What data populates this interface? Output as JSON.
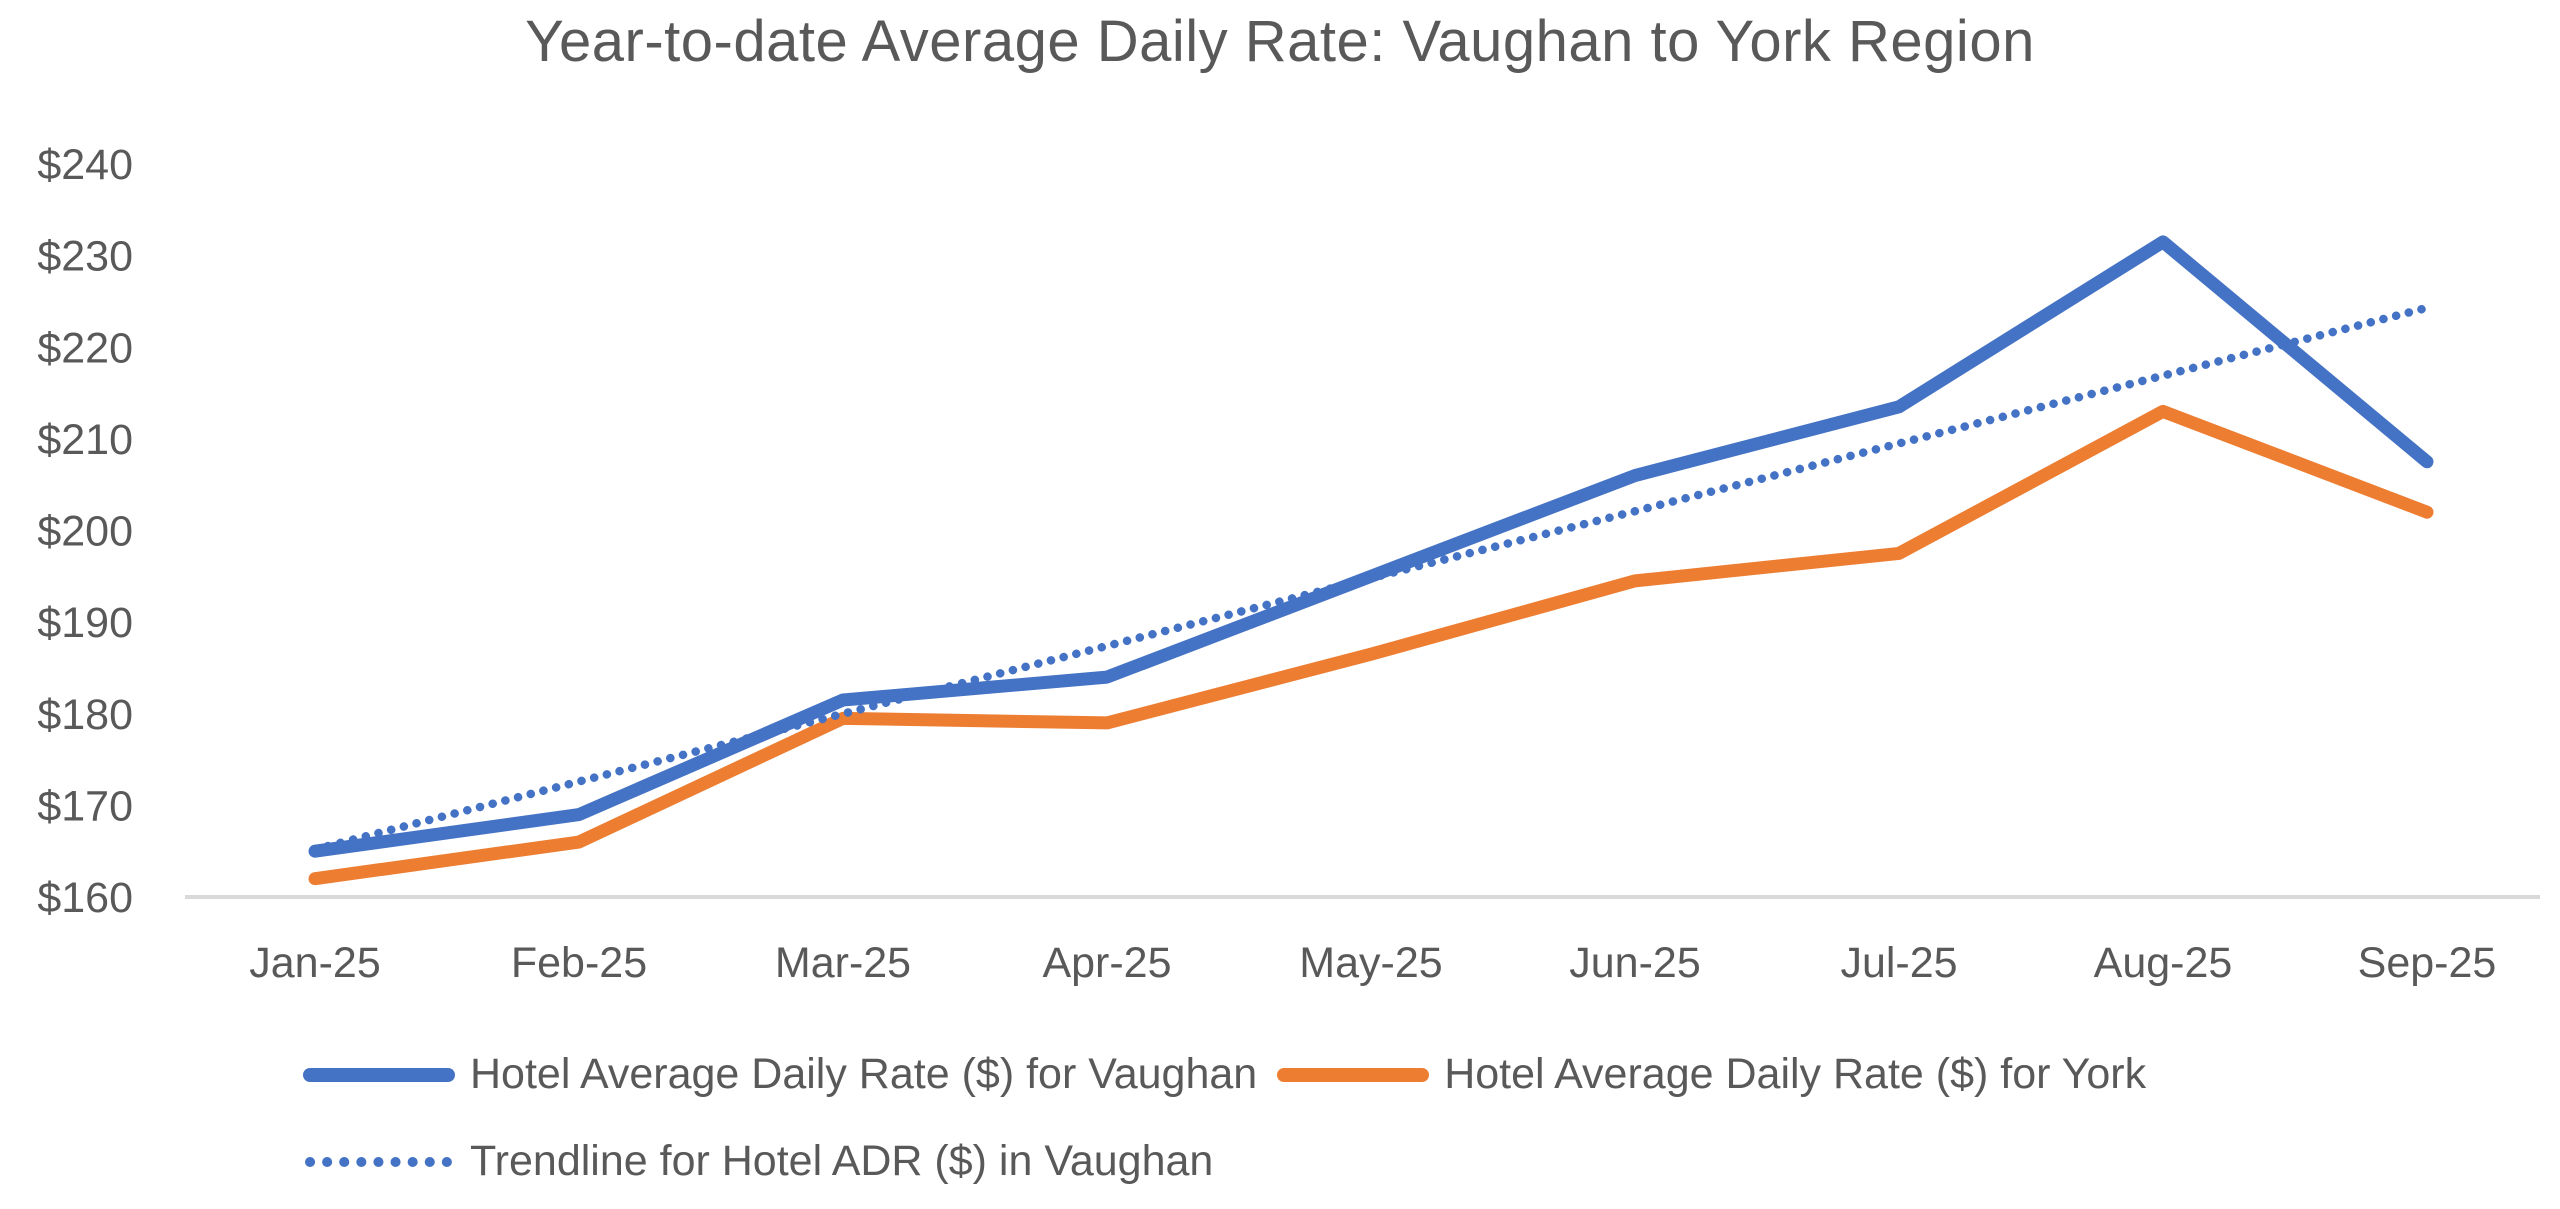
{
  "page": {
    "background": "#ffffff"
  },
  "chart_data": {
    "type": "line",
    "title": "Year-to-date Average Daily Rate: Vaughan to York Region",
    "categories": [
      "Jan-25",
      "Feb-25",
      "Mar-25",
      "Apr-25",
      "May-25",
      "Jun-25",
      "Jul-25",
      "Aug-25",
      "Sep-25"
    ],
    "series": [
      {
        "id": "vaughan",
        "name": "Hotel Average Daily Rate ($) for Vaughan",
        "color": "#4472C4",
        "style": "solid",
        "values": [
          165,
          169,
          181.5,
          184,
          195,
          206,
          213.5,
          231.5,
          207.5
        ]
      },
      {
        "id": "york",
        "name": "Hotel Average Daily Rate ($) for York",
        "color": "#ED7D31",
        "style": "solid",
        "values": [
          162,
          166,
          179.5,
          179,
          186.5,
          194.5,
          197.5,
          213,
          202
        ]
      },
      {
        "id": "vaughan-trendline",
        "name": "Trendline for Hotel ADR ($) in Vaughan",
        "color": "#4472C4",
        "style": "dotted",
        "values": [
          165.2,
          172.6,
          180.0,
          187.4,
          194.8,
          202.1,
          209.5,
          216.9,
          224.3
        ]
      }
    ],
    "y_axis": {
      "min": 160,
      "max": 240,
      "step": 10,
      "tick_labels": [
        "$160",
        "$170",
        "$180",
        "$190",
        "$200",
        "$210",
        "$220",
        "$230",
        "$240"
      ]
    },
    "x_axis": {
      "tick_labels": [
        "Jan-25",
        "Feb-25",
        "Mar-25",
        "Apr-25",
        "May-25",
        "Jun-25",
        "Jul-25",
        "Aug-25",
        "Sep-25"
      ]
    },
    "grid": false,
    "legend_position": "bottom",
    "colors": {
      "axis_line": "#D9D9D9",
      "text": "#595959",
      "background": "#ffffff"
    }
  }
}
